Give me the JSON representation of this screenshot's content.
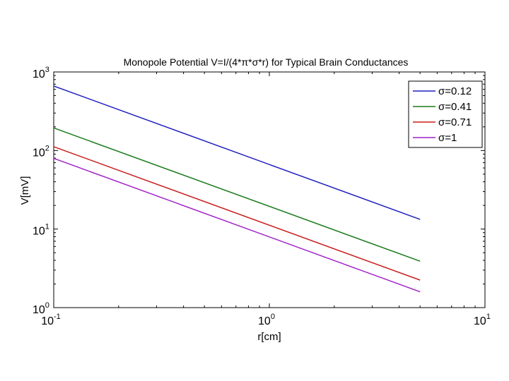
{
  "chart_data": {
    "type": "line",
    "title": "Monopole Potential V=I/(4*π*σ*r) for Typical Brain Conductances",
    "xlabel": "r[cm]",
    "ylabel": "V[mV]",
    "xscale": "log",
    "yscale": "log",
    "xlim": [
      0.1,
      10
    ],
    "ylim": [
      1,
      1000
    ],
    "x_ticks": [
      {
        "value": 0.1,
        "base": "10",
        "exp": "-1"
      },
      {
        "value": 1,
        "base": "10",
        "exp": "0"
      },
      {
        "value": 10,
        "base": "10",
        "exp": "1"
      }
    ],
    "y_ticks": [
      {
        "value": 1,
        "base": "10",
        "exp": "0"
      },
      {
        "value": 10,
        "base": "10",
        "exp": "1"
      },
      {
        "value": 100,
        "base": "10",
        "exp": "2"
      },
      {
        "value": 1000,
        "base": "10",
        "exp": "3"
      }
    ],
    "grid": false,
    "legend_position": "top-right",
    "series": [
      {
        "name": "σ=0.12",
        "sigma": 0.12,
        "color": "#1f1fbf",
        "x": [
          0.1,
          5
        ],
        "y": [
          663,
          13.3
        ]
      },
      {
        "name": "σ=0.41",
        "sigma": 0.41,
        "color": "#1a7a1a",
        "x": [
          0.1,
          5
        ],
        "y": [
          194,
          3.9
        ]
      },
      {
        "name": "σ=0.71",
        "sigma": 0.71,
        "color": "#c81e1e",
        "x": [
          0.1,
          5
        ],
        "y": [
          112,
          2.24
        ]
      },
      {
        "name": "σ=1",
        "sigma": 1,
        "color": "#a020c8",
        "x": [
          0.1,
          5
        ],
        "y": [
          79.6,
          1.59
        ]
      }
    ]
  }
}
